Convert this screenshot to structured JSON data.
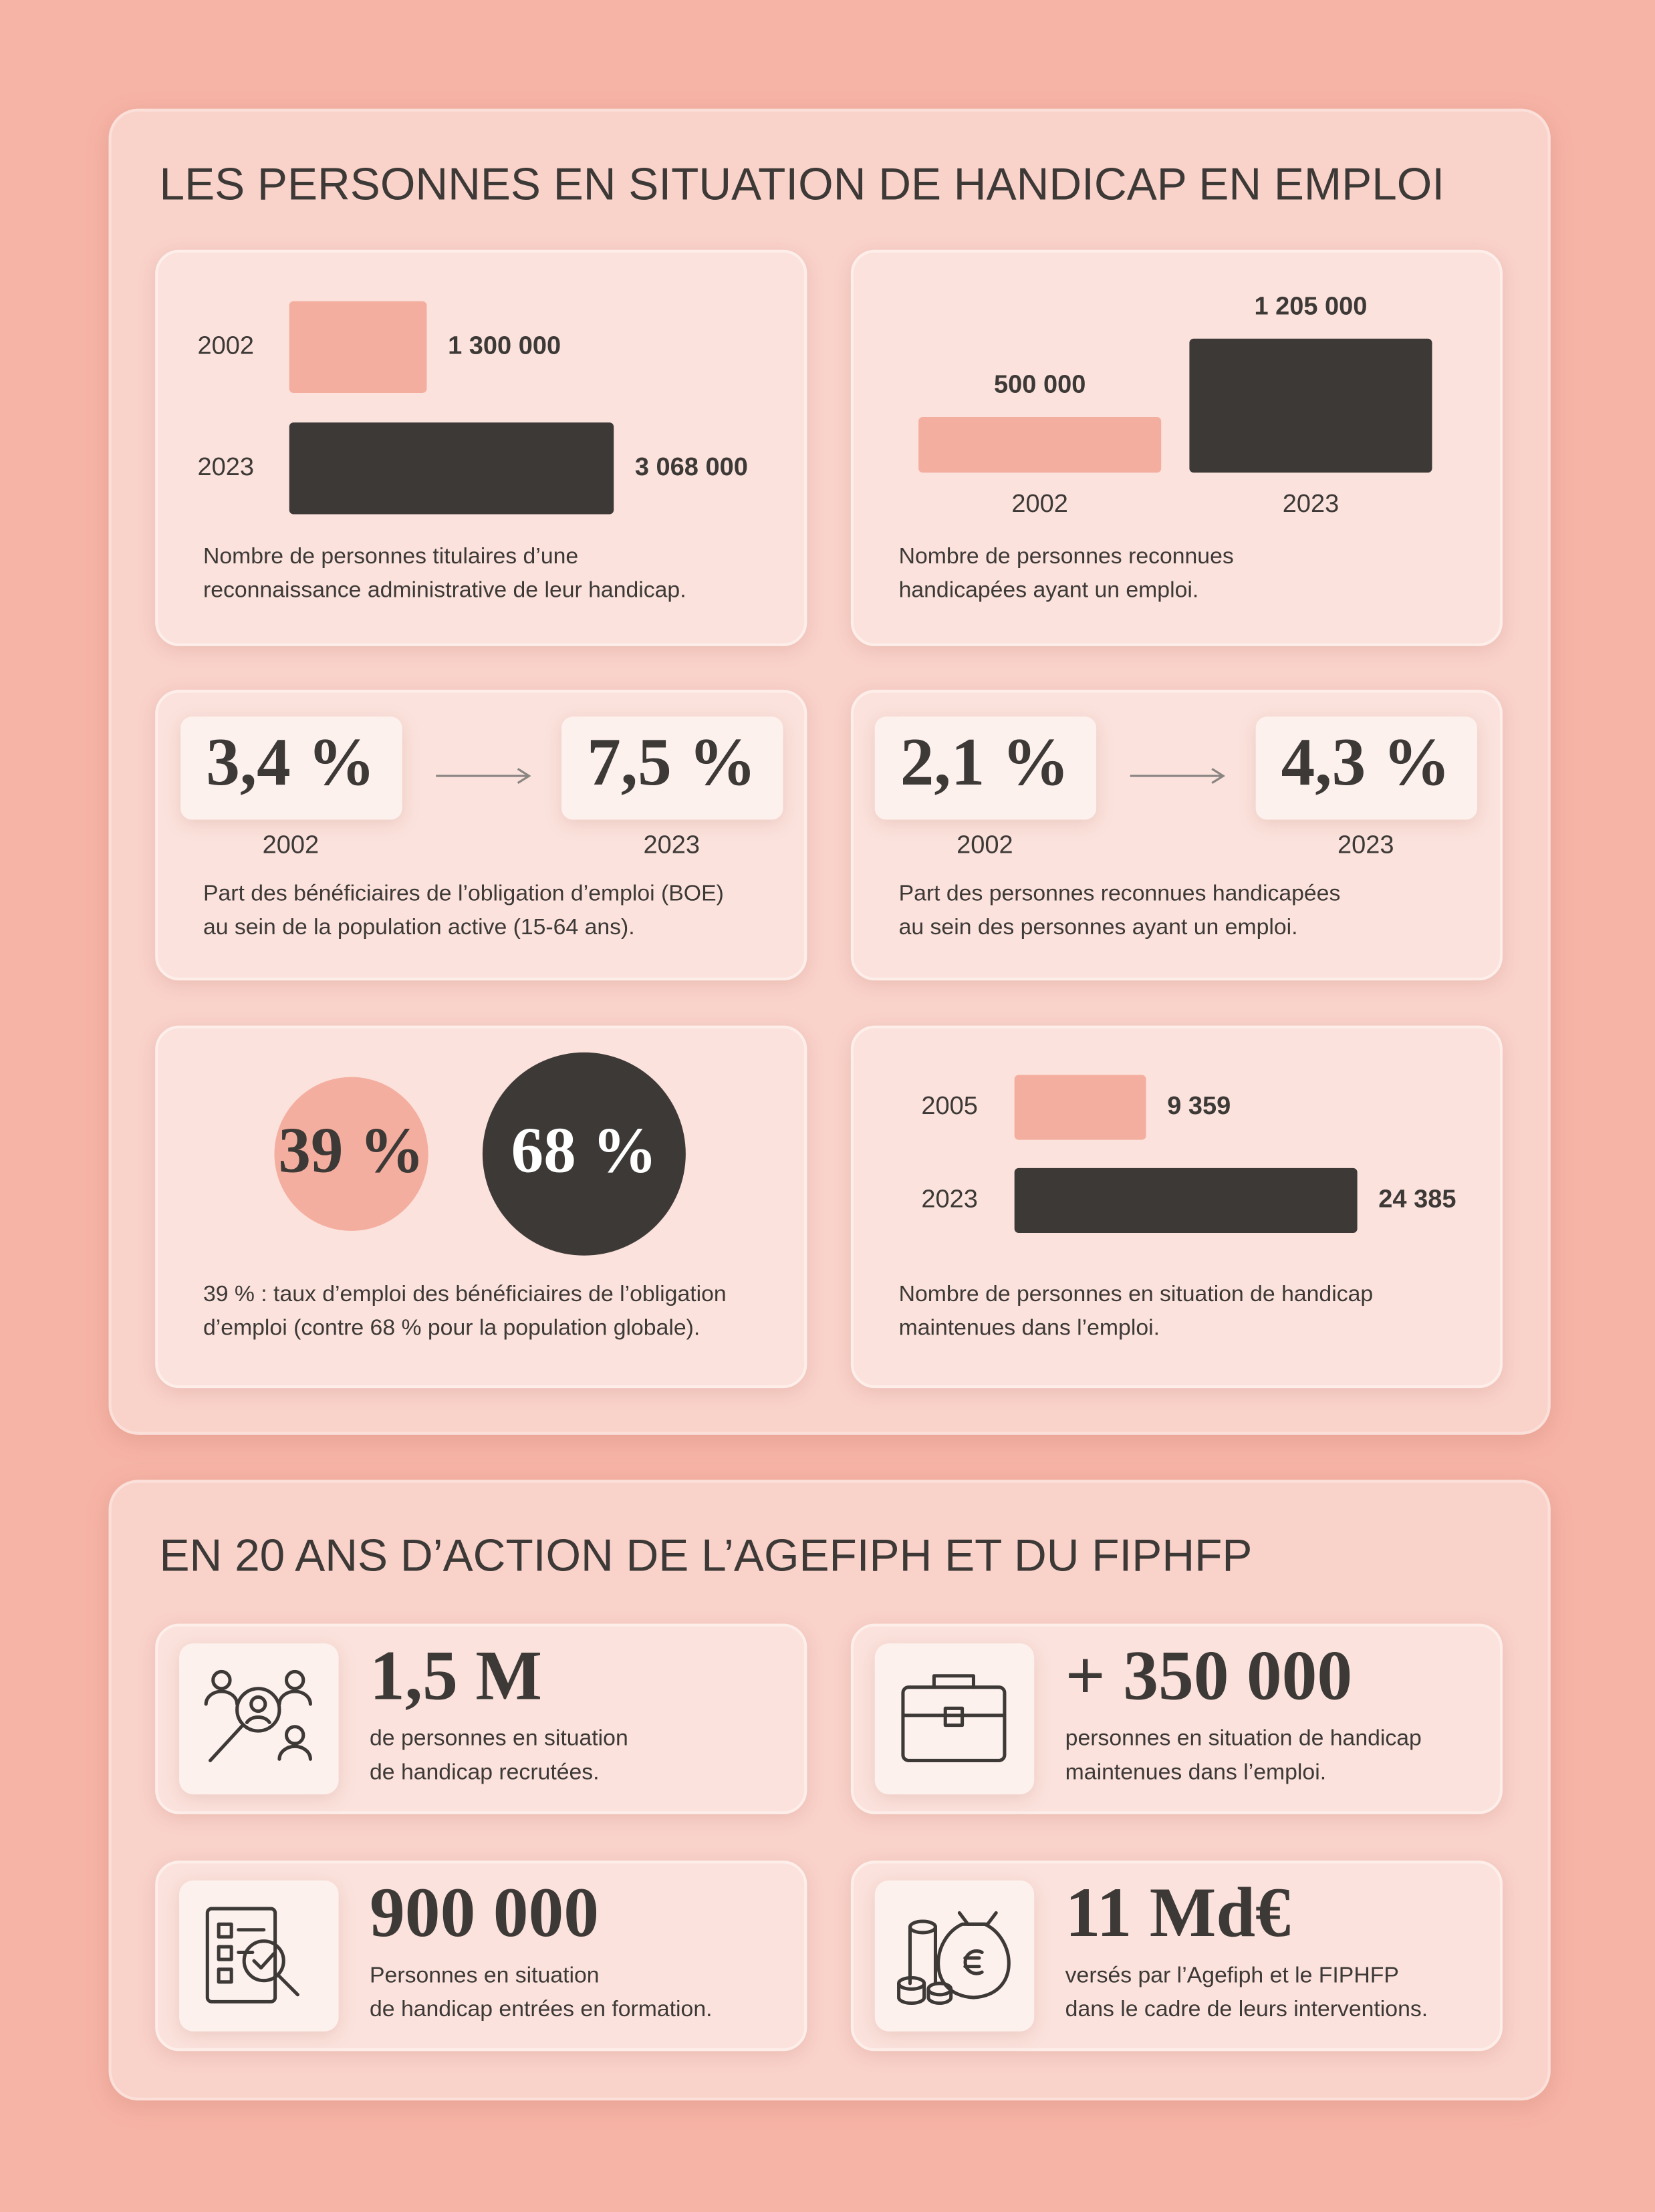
{
  "sections": [
    {
      "title": "LES PERSONNES EN SITUATION DE HANDICAP EN EMPLOI",
      "cards": [
        {
          "type": "hbar",
          "categories": [
            "2002",
            "2023"
          ],
          "values": [
            1300000,
            3068000
          ],
          "value_labels": [
            "1 300 000",
            "3 068 000"
          ],
          "colors": [
            "#f4ae9f",
            "#3d3937"
          ],
          "caption": [
            "Nombre de personnes titulaires d’une",
            "reconnaissance administrative de leur handicap."
          ]
        },
        {
          "type": "vbar",
          "categories": [
            "2002",
            "2023"
          ],
          "values": [
            500000,
            1205000
          ],
          "value_labels": [
            "500 000",
            "1 205 000"
          ],
          "colors": [
            "#f4ae9f",
            "#3d3937"
          ],
          "caption": [
            "Nombre de personnes reconnues",
            "handicapées ayant un emploi."
          ]
        },
        {
          "type": "change",
          "categories": [
            "2002",
            "2023"
          ],
          "values": [
            3.4,
            7.5
          ],
          "value_labels": [
            "3,4 %",
            "7,5 %"
          ],
          "caption": [
            "Part des bénéficiaires de l’obligation d’emploi (BOE)",
            "au sein de la population active (15-64 ans)."
          ]
        },
        {
          "type": "change",
          "categories": [
            "2002",
            "2023"
          ],
          "values": [
            2.1,
            4.3
          ],
          "value_labels": [
            "2,1 %",
            "4,3 %"
          ],
          "caption": [
            "Part des personnes reconnues handicapées",
            "au sein des personnes ayant un emploi."
          ]
        },
        {
          "type": "circles",
          "values": [
            39,
            68
          ],
          "value_labels": [
            "39 %",
            "68 %"
          ],
          "colors": [
            "#f4ae9f",
            "#3d3937"
          ],
          "caption": [
            "39 % : taux d’emploi des bénéficiaires de l’obligation",
            "d’emploi (contre 68 % pour la population globale)."
          ]
        },
        {
          "type": "hbar",
          "categories": [
            "2005",
            "2023"
          ],
          "values": [
            9359,
            24385
          ],
          "value_labels": [
            "9 359",
            "24 385"
          ],
          "colors": [
            "#f4ae9f",
            "#3d3937"
          ],
          "caption": [
            "Nombre de personnes en situation de handicap",
            "maintenues dans l’emploi."
          ]
        }
      ]
    },
    {
      "title": "EN 20 ANS D’ACTION DE L’AGEFIPH ET DU FIPHFP",
      "cards": [
        {
          "type": "stat",
          "value": "1,5 M",
          "text": [
            "de personnes en situation",
            "de handicap recrutées."
          ]
        },
        {
          "type": "stat",
          "value": "+ 350 000",
          "text": [
            "personnes en situation de handicap",
            "maintenues dans l’emploi."
          ]
        },
        {
          "type": "stat",
          "value": "900 000",
          "text": [
            "Personnes en situation",
            "de handicap entrées en formation."
          ]
        },
        {
          "type": "stat",
          "value": "11 Md€",
          "text": [
            "versés par l’Agefiph et le FIPHFP",
            "dans le cadre de leurs interventions."
          ]
        }
      ]
    }
  ]
}
